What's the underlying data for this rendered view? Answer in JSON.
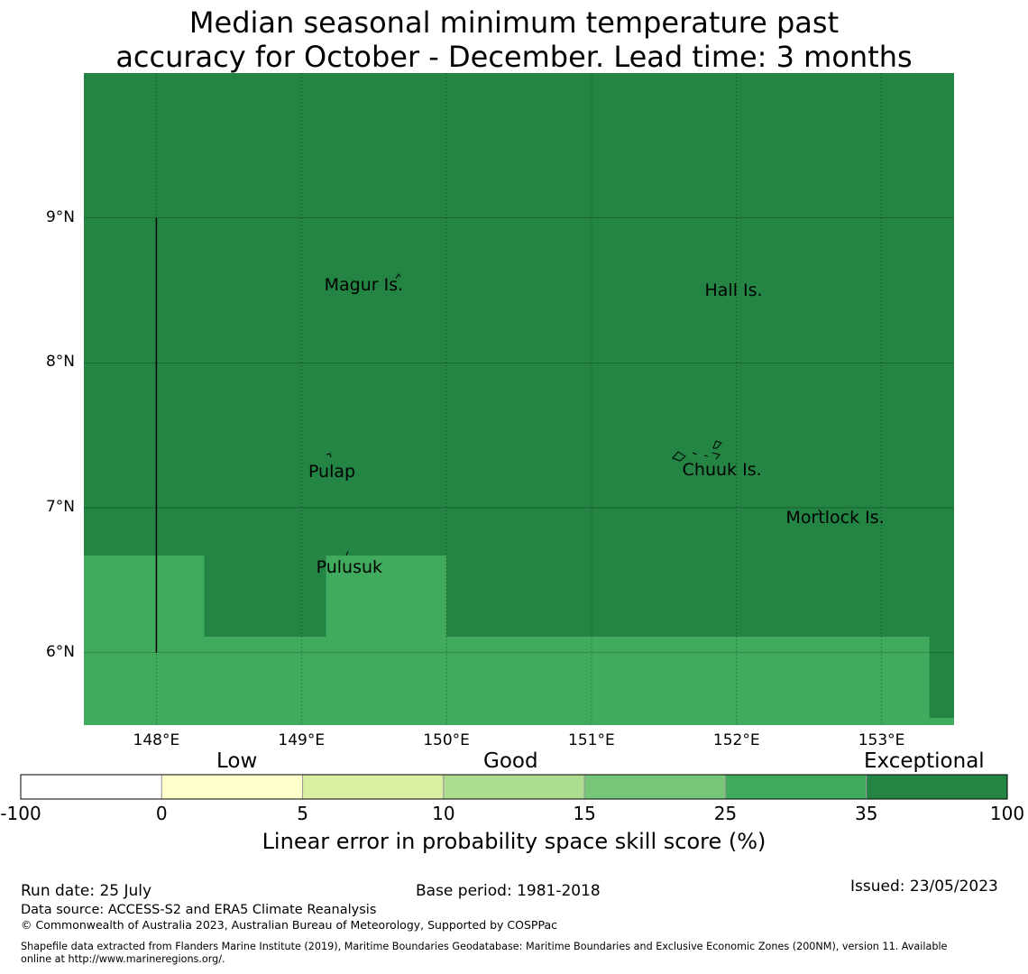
{
  "title_line1": "Median seasonal minimum temperature past",
  "title_line2": "accuracy for October - December. Lead time: 3 months",
  "map": {
    "lon_range": [
      147.5,
      153.5
    ],
    "lat_range": [
      5.5,
      10.0
    ],
    "lat_ticks": [
      {
        "value": 9,
        "label": "9°N"
      },
      {
        "value": 8,
        "label": "8°N"
      },
      {
        "value": 7,
        "label": "7°N"
      },
      {
        "value": 6,
        "label": "6°N"
      }
    ],
    "lon_ticks": [
      {
        "value": 148,
        "label": "148°E"
      },
      {
        "value": 149,
        "label": "149°E"
      },
      {
        "value": 150,
        "label": "150°E"
      },
      {
        "value": 151,
        "label": "151°E"
      },
      {
        "value": 152,
        "label": "152°E"
      },
      {
        "value": 153,
        "label": "153°E"
      }
    ],
    "background_category": "exceptional",
    "regions": [
      {
        "category": "good_high",
        "lon": [
          147.5,
          148.33
        ],
        "lat": [
          5.5,
          6.67
        ]
      },
      {
        "category": "good_high",
        "lon": [
          148.33,
          149.17
        ],
        "lat": [
          5.5,
          6.11
        ]
      },
      {
        "category": "good_high",
        "lon": [
          149.17,
          150.0
        ],
        "lat": [
          5.5,
          6.67
        ]
      },
      {
        "category": "good_high",
        "lon": [
          150.0,
          153.33
        ],
        "lat": [
          5.5,
          6.11
        ]
      },
      {
        "category": "good_high",
        "lon": [
          153.33,
          153.5
        ],
        "lat": [
          5.5,
          5.55
        ]
      }
    ],
    "boundary_line": {
      "lon": 148.0,
      "lat": [
        6.0,
        9.0
      ]
    },
    "places": [
      {
        "name": "Magur Is.",
        "lon": 149.43,
        "lat": 8.54
      },
      {
        "name": "Hall Is.",
        "lon": 151.98,
        "lat": 8.5
      },
      {
        "name": "Pulap",
        "lon": 149.21,
        "lat": 7.25
      },
      {
        "name": "Chuuk Is.",
        "lon": 151.9,
        "lat": 7.26
      },
      {
        "name": "Mortlock Is.",
        "lon": 152.68,
        "lat": 6.93
      },
      {
        "name": "Pulusuk",
        "lon": 149.33,
        "lat": 6.59
      }
    ]
  },
  "legend": {
    "categories": [
      {
        "label": "Low"
      },
      {
        "label": "Good"
      },
      {
        "label": "Exceptional"
      }
    ],
    "bins": [
      {
        "from": -100,
        "to": 0,
        "color": "#ffffff"
      },
      {
        "from": 0,
        "to": 5,
        "color": "#ffffcc"
      },
      {
        "from": 5,
        "to": 10,
        "color": "#d9f0a3"
      },
      {
        "from": 10,
        "to": 15,
        "color": "#addd8e"
      },
      {
        "from": 15,
        "to": 25,
        "color": "#78c679"
      },
      {
        "from": 25,
        "to": 35,
        "color": "#41ab5d"
      },
      {
        "from": 35,
        "to": 100,
        "color": "#238443"
      }
    ],
    "tick_labels": [
      "-100",
      "0",
      "5",
      "10",
      "15",
      "25",
      "35",
      "100"
    ],
    "title": "Linear error in probability space skill score (%)"
  },
  "colors": {
    "exceptional": "#238443",
    "good_high": "#41ab5d"
  },
  "footer": {
    "run_date": "Run date: 25 July",
    "base_period": "Base period: 1981-2018",
    "issued": "Issued: 23/05/2023",
    "data_source": "Data source: ACCESS-S2 and ERA5 Climate Reanalysis",
    "copyright": "© Commonwealth of Australia 2023, Australian Bureau of Meteorology, Supported by COSPPac",
    "shapefile_line1": "Shapefile data extracted from Flanders Marine Institute (2019), Maritime Boundaries Geodatabase: Maritime Boundaries and Exclusive Economic Zones (200NM), version 11. Available",
    "shapefile_line2": "online at http://www.marineregions.org/."
  }
}
